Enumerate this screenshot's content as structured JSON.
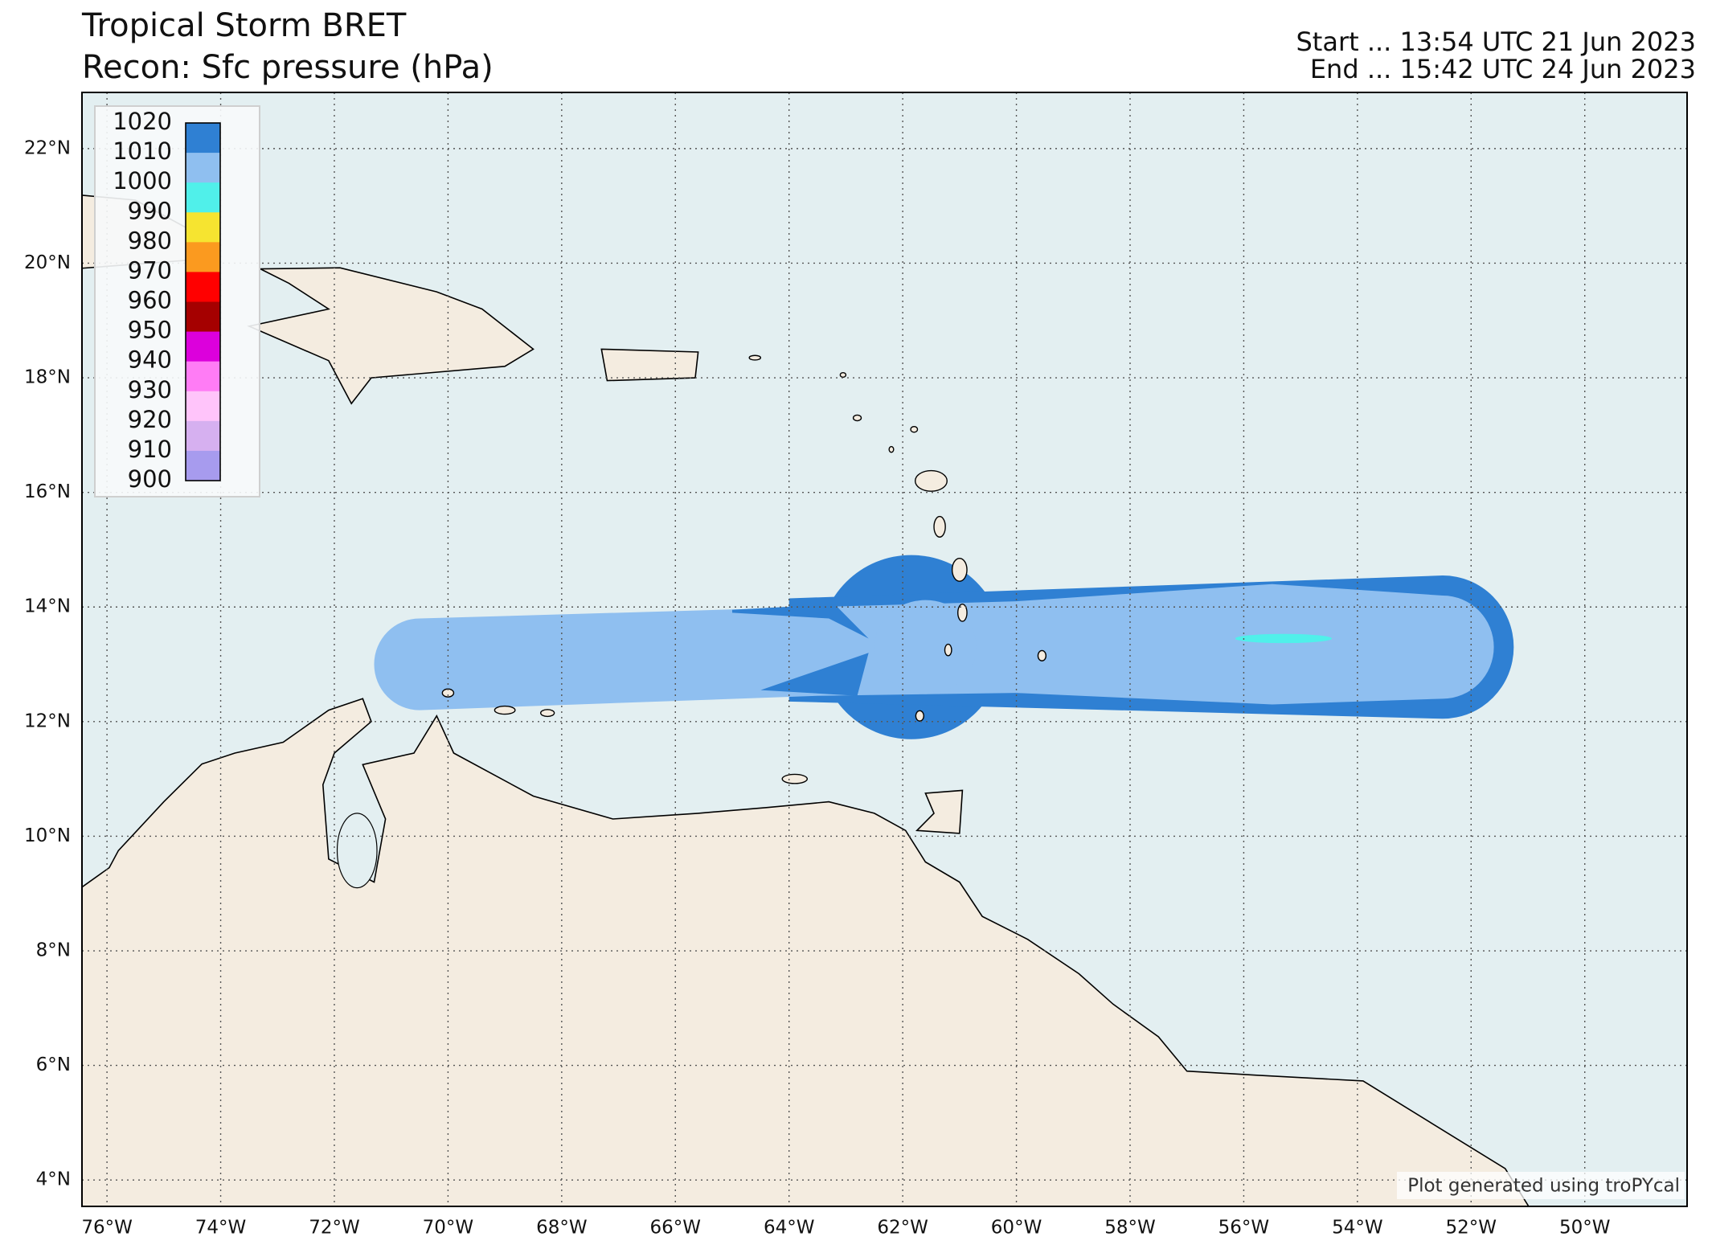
{
  "header": {
    "title": "Tropical Storm BRET",
    "subtitle": "Recon: Sfc pressure (hPa)",
    "start": "Start ... 13:54 UTC 21 Jun 2023",
    "end": "End ... 15:42 UTC 24 Jun 2023"
  },
  "map": {
    "lon_range": [
      -76.44,
      -48.2
    ],
    "lat_range": [
      3.54,
      22.98
    ],
    "lon_ticks": [
      {
        "value": -76,
        "label": "76°W"
      },
      {
        "value": -74,
        "label": "74°W"
      },
      {
        "value": -72,
        "label": "72°W"
      },
      {
        "value": -70,
        "label": "70°W"
      },
      {
        "value": -68,
        "label": "68°W"
      },
      {
        "value": -66,
        "label": "66°W"
      },
      {
        "value": -64,
        "label": "64°W"
      },
      {
        "value": -62,
        "label": "62°W"
      },
      {
        "value": -60,
        "label": "60°W"
      },
      {
        "value": -58,
        "label": "58°W"
      },
      {
        "value": -56,
        "label": "56°W"
      },
      {
        "value": -54,
        "label": "54°W"
      },
      {
        "value": -52,
        "label": "52°W"
      },
      {
        "value": -50,
        "label": "50°W"
      }
    ],
    "lat_ticks": [
      {
        "value": 22,
        "label": "22°N"
      },
      {
        "value": 20,
        "label": "20°N"
      },
      {
        "value": 18,
        "label": "18°N"
      },
      {
        "value": 16,
        "label": "16°N"
      },
      {
        "value": 14,
        "label": "14°N"
      },
      {
        "value": 12,
        "label": "12°N"
      },
      {
        "value": 10,
        "label": "10°N"
      },
      {
        "value": 8,
        "label": "8°N"
      },
      {
        "value": 6,
        "label": "6°N"
      },
      {
        "value": 4,
        "label": "4°N"
      }
    ]
  },
  "colorbar": {
    "levels": [
      1020,
      1010,
      1000,
      990,
      980,
      970,
      960,
      950,
      940,
      930,
      920,
      910,
      900
    ],
    "colors": [
      "#2f80d3",
      "#8fbff0",
      "#50f0ea",
      "#f6e430",
      "#fb9a1f",
      "#ff0000",
      "#a50000",
      "#dc00dc",
      "#ff7cf5",
      "#ffc4fa",
      "#d6b0f0",
      "#a79bee"
    ]
  },
  "credit": "Plot generated using troPYcal"
}
